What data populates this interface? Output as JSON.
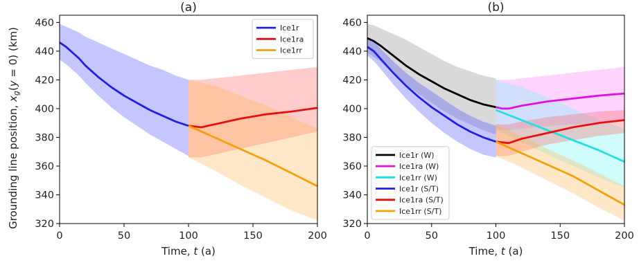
{
  "figure": {
    "ylabel": "Grounding line position, x_g(y = 0) (km)"
  },
  "chart_data": [
    {
      "type": "line",
      "title": "(a)",
      "xlabel": "Time, t (a)",
      "ylabel": "Grounding line position, x_g(y = 0) (km)",
      "xlim": [
        0,
        200
      ],
      "ylim": [
        320,
        465
      ],
      "xticks": [
        "0",
        "50",
        "100",
        "150",
        "200"
      ],
      "yticks": [
        "320",
        "340",
        "360",
        "380",
        "400",
        "420",
        "440",
        "460"
      ],
      "grid": false,
      "legend_position": "top-right",
      "series": [
        {
          "name": "Ice1r",
          "color": "#1f1fe6",
          "band_color": "#4040ff",
          "x": [
            0,
            5,
            10,
            15,
            20,
            30,
            40,
            50,
            60,
            70,
            80,
            90,
            100
          ],
          "y": [
            446,
            443,
            439,
            435,
            430,
            422,
            415,
            409,
            404,
            399,
            395,
            391,
            388
          ],
          "lower": [
            434,
            431,
            427,
            423,
            418,
            409,
            401,
            394,
            388,
            382,
            377,
            372,
            367
          ],
          "upper": [
            459,
            457,
            455,
            453,
            450,
            446,
            442,
            438,
            434,
            430,
            427,
            423,
            420
          ]
        },
        {
          "name": "Ice1ra",
          "color": "#e61010",
          "band_color": "#ff5555",
          "x": [
            100,
            105,
            110,
            120,
            140,
            160,
            180,
            200
          ],
          "y": [
            388,
            387.5,
            387,
            389,
            393,
            396,
            398,
            400.5
          ],
          "lower": [
            366,
            366,
            366,
            368,
            372,
            376,
            380,
            384
          ],
          "upper": [
            420,
            420,
            420,
            421,
            423,
            425,
            427,
            429
          ]
        },
        {
          "name": "Ice1rr",
          "color": "#f5a00a",
          "band_color": "#ffb347",
          "x": [
            100,
            120,
            140,
            160,
            180,
            200
          ],
          "y": [
            388,
            380,
            372,
            364,
            355,
            346
          ],
          "lower": [
            366,
            357,
            347,
            338,
            329,
            322
          ],
          "upper": [
            420,
            416,
            409,
            402,
            394,
            386
          ]
        }
      ]
    },
    {
      "type": "line",
      "title": "(b)",
      "xlabel": "Time, t (a)",
      "ylabel": "",
      "xlim": [
        0,
        200
      ],
      "ylim": [
        320,
        465
      ],
      "xticks": [
        "0",
        "50",
        "100",
        "150",
        "200"
      ],
      "yticks": [
        "320",
        "340",
        "360",
        "380",
        "400",
        "420",
        "440",
        "460"
      ],
      "grid": false,
      "legend_position": "bottom-left",
      "series": [
        {
          "name": "Ice1r (W)",
          "color": "#000000",
          "band_color": "#808080",
          "x": [
            0,
            5,
            10,
            20,
            30,
            40,
            50,
            60,
            70,
            80,
            90,
            100
          ],
          "y": [
            449,
            447,
            444,
            437,
            430,
            424,
            419,
            414,
            410,
            406,
            403,
            401
          ],
          "lower": [
            439,
            436,
            433,
            425,
            417,
            410,
            404,
            398,
            393,
            389,
            385,
            382
          ],
          "upper": [
            459,
            458,
            456,
            452,
            448,
            443,
            438,
            433,
            429,
            426,
            423,
            421
          ]
        },
        {
          "name": "Ice1ra (W)",
          "color": "#e010e0",
          "band_color": "#ff70ff",
          "x": [
            100,
            105,
            110,
            120,
            140,
            160,
            180,
            200
          ],
          "y": [
            401,
            400,
            400,
            402,
            405,
            407,
            409,
            410.5
          ],
          "lower": [
            385,
            385,
            385,
            386,
            388,
            389,
            390,
            392
          ],
          "upper": [
            420,
            420,
            420,
            421,
            423,
            425,
            427,
            429
          ]
        },
        {
          "name": "Ice1rr (W)",
          "color": "#20e0e0",
          "band_color": "#66f5f5",
          "x": [
            100,
            120,
            140,
            160,
            180,
            200
          ],
          "y": [
            399,
            392,
            385,
            378,
            371,
            363
          ],
          "lower": [
            385,
            377,
            368,
            360,
            352,
            345
          ],
          "upper": [
            420,
            415,
            408,
            400,
            392,
            386
          ]
        },
        {
          "name": "Ice1r (S/T)",
          "color": "#1f1fe6",
          "band_color": "#4040ff",
          "x": [
            0,
            5,
            10,
            20,
            30,
            40,
            50,
            60,
            70,
            80,
            90,
            100
          ],
          "y": [
            443,
            440,
            435,
            425,
            416,
            408,
            401,
            395,
            389,
            384,
            380,
            377
          ],
          "lower": [
            437,
            433,
            428,
            417,
            407,
            398,
            390,
            383,
            377,
            372,
            368,
            366
          ],
          "upper": [
            449,
            447,
            442,
            433,
            425,
            418,
            412,
            406,
            400,
            395,
            391,
            388
          ]
        },
        {
          "name": "Ice1ra (S/T)",
          "color": "#e61010",
          "band_color": "#ff5555",
          "x": [
            100,
            110,
            120,
            140,
            160,
            180,
            200
          ],
          "y": [
            377,
            376,
            379,
            383,
            387,
            390,
            392
          ],
          "lower": [
            367,
            367,
            370,
            375,
            378,
            381,
            383
          ],
          "upper": [
            389,
            389,
            391,
            394,
            396,
            398,
            399
          ]
        },
        {
          "name": "Ice1rr (S/T)",
          "color": "#f5a00a",
          "band_color": "#ffb347",
          "x": [
            100,
            120,
            140,
            160,
            180,
            200
          ],
          "y": [
            377,
            369,
            361,
            353,
            343,
            333
          ],
          "lower": [
            367,
            359,
            350,
            341,
            331,
            322
          ],
          "upper": [
            389,
            381,
            372,
            364,
            355,
            346
          ]
        }
      ]
    }
  ]
}
